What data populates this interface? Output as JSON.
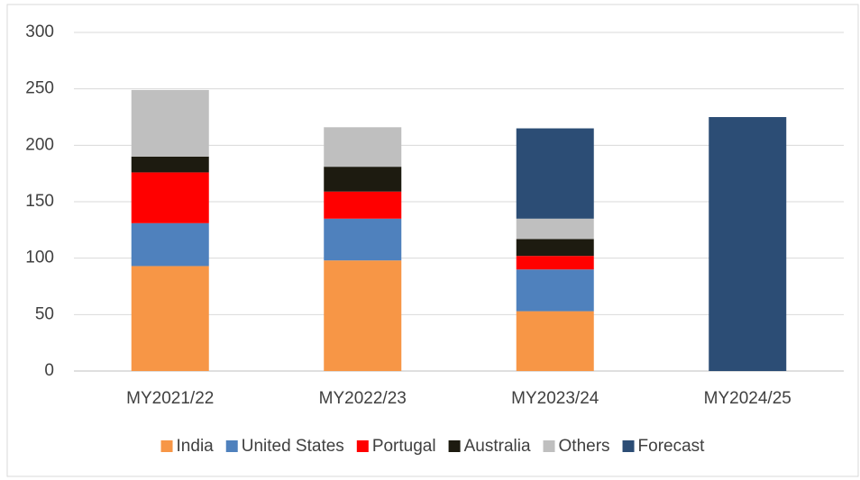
{
  "chart_data": {
    "type": "bar",
    "stacked": true,
    "categories": [
      "MY2021/22",
      "MY2022/23",
      "MY2023/24",
      "MY2024/25"
    ],
    "series": [
      {
        "name": "India",
        "color": "#f79646",
        "values": [
          93,
          98,
          53,
          null
        ]
      },
      {
        "name": "United States",
        "color": "#4f81bd",
        "values": [
          38,
          37,
          37,
          null
        ]
      },
      {
        "name": "Portugal",
        "color": "#ff0000",
        "values": [
          45,
          24,
          12,
          null
        ]
      },
      {
        "name": "Australia",
        "color": "#1d1b10",
        "values": [
          14,
          22,
          15,
          null
        ]
      },
      {
        "name": "Others",
        "color": "#bfbfbf",
        "values": [
          59,
          35,
          18,
          null
        ]
      },
      {
        "name": "Forecast",
        "color": "#2c4d75",
        "values": [
          null,
          null,
          80,
          225
        ]
      }
    ],
    "ylim": [
      0,
      300
    ],
    "yticks": [
      0,
      50,
      100,
      150,
      200,
      250,
      300
    ],
    "grid": true,
    "legend": "bottom"
  }
}
